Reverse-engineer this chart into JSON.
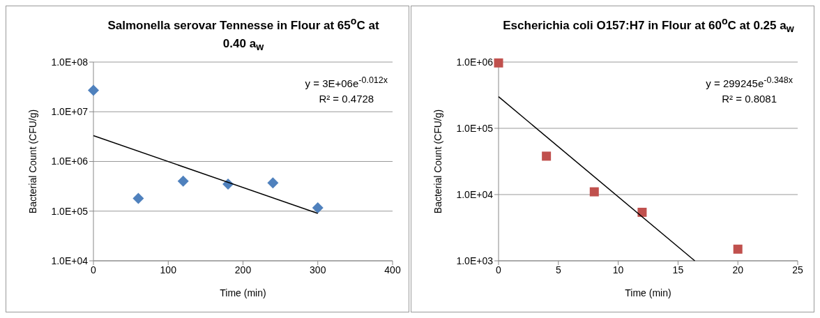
{
  "chart_data": [
    {
      "type": "scatter",
      "title": "Salmonella serovar Tennesse in Flour at 65$^{o}$C at 0.40 a$_{w}$",
      "xlabel": "Time (min)",
      "ylabel": "Bacterial Count (CFU/g)",
      "annotations": [
        "y = 3E+06e$^{-0.012x}$",
        "R² = 0.4728"
      ],
      "log": "y",
      "grid": "y",
      "xlim": [
        0,
        400
      ],
      "xticks": [
        0,
        100,
        200,
        300,
        400
      ],
      "ylim": [
        10000,
        100000000
      ],
      "yticks": [
        {
          "value": 10000,
          "label": "1.0E+04"
        },
        {
          "value": 100000,
          "label": "1.0E+05"
        },
        {
          "value": 1000000,
          "label": "1.0E+06"
        },
        {
          "value": 10000000,
          "label": "1.0E+07"
        },
        {
          "value": 100000000,
          "label": "1.0E+08"
        }
      ],
      "series": [
        {
          "type": "scatter",
          "color": "#4f81bd",
          "marker": "diamond",
          "x": [
            0,
            60,
            120,
            180,
            240,
            300
          ],
          "values": [
            27000000,
            180000,
            400000,
            350000,
            370000,
            117000
          ]
        },
        {
          "type": "line",
          "color": "#000000",
          "marker": "none",
          "line_style": "solid",
          "x": [
            0,
            300
          ],
          "values": [
            3300000,
            90000
          ]
        }
      ]
    },
    {
      "type": "scatter",
      "title": "Escherichia coli O157:H7 in Flour at 60$^{o}$C at 0.25 a$_{w}$",
      "xlabel": "Time (min)",
      "ylabel": "Bacterial Count (CFU/g)",
      "annotations": [
        "y = 299245e$^{-0.348x}$",
        "R² = 0.8081"
      ],
      "log": "y",
      "grid": "y",
      "xlim": [
        0,
        25
      ],
      "xticks": [
        0,
        5,
        10,
        15,
        20,
        25
      ],
      "ylim": [
        1000,
        1000000
      ],
      "yticks": [
        {
          "value": 1000,
          "label": "1.0E+03"
        },
        {
          "value": 10000,
          "label": "1.0E+04"
        },
        {
          "value": 100000,
          "label": "1.0E+05"
        },
        {
          "value": 1000000,
          "label": "1.0E+06"
        }
      ],
      "series": [
        {
          "type": "scatter",
          "color": "#c0504d",
          "marker": "square",
          "x": [
            0,
            4,
            8,
            12,
            20
          ],
          "values": [
            970000,
            38000,
            11000,
            5400,
            1500
          ]
        },
        {
          "type": "line",
          "color": "#000000",
          "marker": "none",
          "line_style": "solid",
          "x": [
            0,
            16.4
          ],
          "values": [
            300000,
            1000
          ]
        }
      ]
    }
  ]
}
